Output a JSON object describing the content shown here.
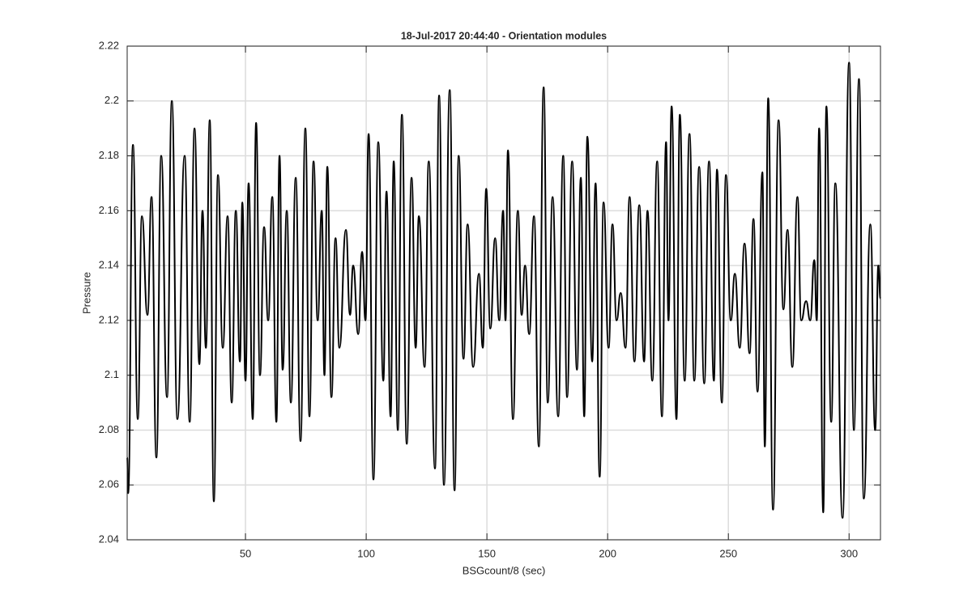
{
  "chart_data": {
    "type": "line",
    "title": "18-Jul-2017 20:44:40 - Orientation modules",
    "x_label": "BSGcount/8 (sec)",
    "y_label": "Pressure",
    "x": [
      1.0,
      1.4,
      3.4,
      5.4,
      7.1,
      9.4,
      11.1,
      13.1,
      15.1,
      17.5,
      19.5,
      21.8,
      24.8,
      26.9,
      28.9,
      30.9,
      32.2,
      33.6,
      35.2,
      36.9,
      38.6,
      40.6,
      42.6,
      44.3,
      46.0,
      47.7,
      48.7,
      50.0,
      51.3,
      53.0,
      54.4,
      56.0,
      57.7,
      59.4,
      61.1,
      62.8,
      64.1,
      65.4,
      67.1,
      68.8,
      70.8,
      72.8,
      74.8,
      76.5,
      78.2,
      79.9,
      81.6,
      82.7,
      83.9,
      85.6,
      87.3,
      88.9,
      91.6,
      93.3,
      94.6,
      96.7,
      98.3,
      99.7,
      101.0,
      103.0,
      105.0,
      107.1,
      108.4,
      110.1,
      111.4,
      113.1,
      114.8,
      116.8,
      118.8,
      120.5,
      121.8,
      124.2,
      125.9,
      128.5,
      130.2,
      132.2,
      134.6,
      136.6,
      138.3,
      140.3,
      142.0,
      144.3,
      146.7,
      148.3,
      149.7,
      151.4,
      153.4,
      155.1,
      156.7,
      157.7,
      158.7,
      160.8,
      162.8,
      164.4,
      165.8,
      167.5,
      169.5,
      171.5,
      173.5,
      175.2,
      177.2,
      179.5,
      181.6,
      183.2,
      185.3,
      187.3,
      188.9,
      190.3,
      191.6,
      193.6,
      195.0,
      196.7,
      198.3,
      200.4,
      202.0,
      203.7,
      205.4,
      207.4,
      209.1,
      211.1,
      213.1,
      215.1,
      216.5,
      218.5,
      220.5,
      222.5,
      224.2,
      225.2,
      226.5,
      228.5,
      229.9,
      231.9,
      233.9,
      235.9,
      237.9,
      240.0,
      242.0,
      244.0,
      245.3,
      247.3,
      249.0,
      251.0,
      252.7,
      254.7,
      256.7,
      258.8,
      260.4,
      262.1,
      264.1,
      265.1,
      266.5,
      268.5,
      270.8,
      272.8,
      274.5,
      276.5,
      278.6,
      280.2,
      282.2,
      283.9,
      285.6,
      286.6,
      287.6,
      289.3,
      290.6,
      292.6,
      294.3,
      297.3,
      300.0,
      302.0,
      304.1,
      306.1,
      308.8,
      310.8,
      312.1,
      313.0
    ],
    "series": [
      {
        "name": "Pressure",
        "color": "#000000",
        "values": [
          2.07,
          2.057,
          2.184,
          2.084,
          2.158,
          2.122,
          2.165,
          2.07,
          2.18,
          2.092,
          2.2,
          2.084,
          2.18,
          2.083,
          2.19,
          2.104,
          2.16,
          2.11,
          2.193,
          2.054,
          2.173,
          2.11,
          2.158,
          2.09,
          2.16,
          2.105,
          2.163,
          2.098,
          2.17,
          2.084,
          2.192,
          2.1,
          2.154,
          2.12,
          2.165,
          2.083,
          2.18,
          2.102,
          2.16,
          2.09,
          2.172,
          2.076,
          2.19,
          2.085,
          2.178,
          2.12,
          2.16,
          2.1,
          2.176,
          2.092,
          2.15,
          2.11,
          2.153,
          2.122,
          2.14,
          2.115,
          2.145,
          2.12,
          2.188,
          2.062,
          2.185,
          2.098,
          2.167,
          2.085,
          2.178,
          2.08,
          2.195,
          2.075,
          2.172,
          2.11,
          2.158,
          2.103,
          2.178,
          2.066,
          2.202,
          2.06,
          2.204,
          2.058,
          2.18,
          2.106,
          2.155,
          2.103,
          2.137,
          2.11,
          2.168,
          2.117,
          2.15,
          2.12,
          2.16,
          2.12,
          2.182,
          2.084,
          2.16,
          2.122,
          2.14,
          2.115,
          2.158,
          2.074,
          2.205,
          2.09,
          2.165,
          2.085,
          2.18,
          2.092,
          2.178,
          2.102,
          2.172,
          2.085,
          2.187,
          2.105,
          2.17,
          2.063,
          2.163,
          2.11,
          2.155,
          2.12,
          2.13,
          2.11,
          2.165,
          2.105,
          2.162,
          2.105,
          2.16,
          2.098,
          2.178,
          2.085,
          2.185,
          2.12,
          2.198,
          2.084,
          2.195,
          2.098,
          2.188,
          2.098,
          2.176,
          2.097,
          2.178,
          2.098,
          2.175,
          2.09,
          2.173,
          2.12,
          2.137,
          2.11,
          2.148,
          2.108,
          2.157,
          2.094,
          2.174,
          2.074,
          2.201,
          2.051,
          2.193,
          2.124,
          2.153,
          2.103,
          2.165,
          2.12,
          2.127,
          2.12,
          2.142,
          2.12,
          2.19,
          2.05,
          2.198,
          2.083,
          2.17,
          2.048,
          2.214,
          2.08,
          2.208,
          2.055,
          2.155,
          2.08,
          2.14,
          2.128
        ]
      }
    ],
    "xlim": [
      1,
      313
    ],
    "ylim": [
      2.04,
      2.22
    ],
    "xticks": [
      50,
      100,
      150,
      200,
      250,
      300
    ],
    "yticks": [
      2.04,
      2.06,
      2.08,
      2.1,
      2.12,
      2.14,
      2.16,
      2.18,
      2.2,
      2.22
    ],
    "grid": true
  }
}
